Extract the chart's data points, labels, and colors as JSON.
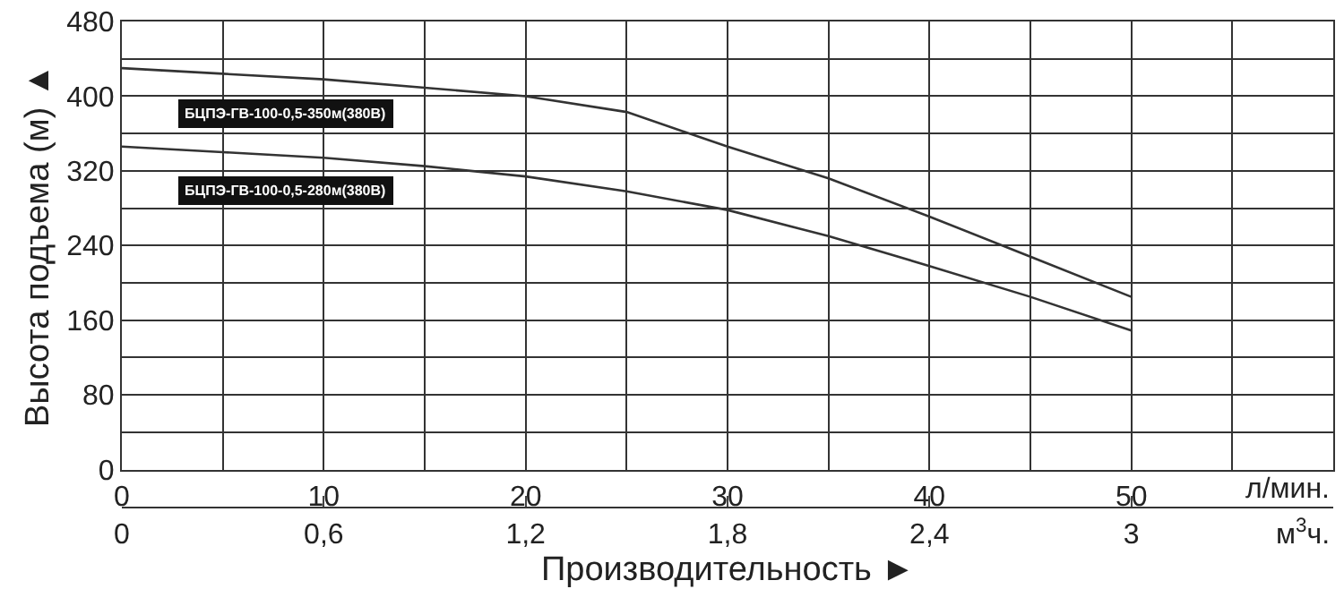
{
  "chart_data": {
    "type": "line",
    "xlabel": "Производительность ►",
    "ylabel": "Высота подъема (м) ▲",
    "x": [
      0,
      5,
      10,
      15,
      20,
      25,
      30,
      35,
      40,
      45,
      50
    ],
    "series": [
      {
        "name": "БЦПЭ-ГВ-100-0,5-350м(380В)",
        "color": "#333333",
        "values": [
          430,
          424,
          418,
          409,
          400,
          383,
          346,
          312,
          271,
          228,
          185
        ]
      },
      {
        "name": "БЦПЭ-ГВ-100-0,5-280м(380В)",
        "color": "#333333",
        "values": [
          346,
          340,
          334,
          325,
          314,
          298,
          278,
          250,
          218,
          185,
          149
        ]
      }
    ],
    "xlim": [
      0,
      60
    ],
    "xticks": [
      0,
      {
        "value": 5,
        "label": null
      },
      10,
      {
        "value": 15,
        "label": null
      },
      20,
      {
        "value": 25,
        "label": null
      },
      30,
      {
        "value": 35,
        "label": null
      },
      40,
      {
        "value": 45,
        "label": null
      },
      50,
      {
        "value": 55,
        "label": null
      },
      {
        "value": 60,
        "label": null
      }
    ],
    "x2lim": [
      0,
      3.6
    ],
    "x2ticks": [
      0,
      {
        "value": 0.6,
        "label": "0,6"
      },
      {
        "value": 1.2,
        "label": "1,2"
      },
      {
        "value": 1.8,
        "label": "1,8"
      },
      {
        "value": 2.4,
        "label": "2,4"
      },
      3
    ],
    "ylim": [
      0,
      480
    ],
    "yticks": [
      0,
      {
        "value": 40,
        "label": null
      },
      80,
      {
        "value": 120,
        "label": null
      },
      160,
      {
        "value": 200,
        "label": null
      },
      240,
      {
        "value": 280,
        "label": null
      },
      320,
      {
        "value": 360,
        "label": null
      },
      400,
      {
        "value": 440,
        "label": null
      },
      480
    ],
    "annotations": [
      "л/мин.",
      "м$^{3}$ч."
    ],
    "grid": true,
    "legend": false,
    "marker": "none",
    "line_style": "solid"
  }
}
